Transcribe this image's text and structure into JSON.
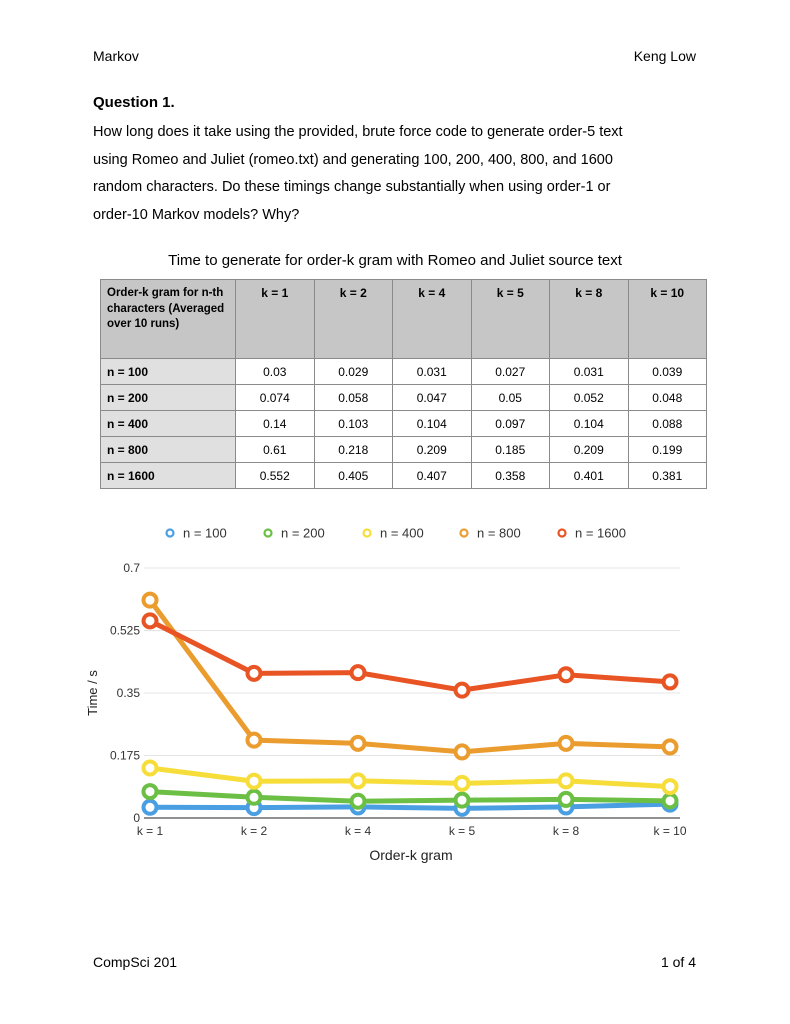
{
  "header": {
    "left": "Markov",
    "right": "Keng Low"
  },
  "question": {
    "title": "Question 1.",
    "lines": [
      "How long does it take using the provided, brute force code to generate order-5 text",
      "using Romeo and Juliet (romeo.txt) and generating 100, 200, 400, 800, and 1600",
      "random characters. Do these timings change substantially when using order-1 or",
      "order-10 Markov models? Why?"
    ]
  },
  "table": {
    "caption": "Time to generate for order-k gram with Romeo and Juliet source text",
    "corner": "Order-k gram for n-th characters (Averaged over 10 runs)",
    "columns": [
      "k = 1",
      "k = 2",
      "k = 4",
      "k = 5",
      "k = 8",
      "k = 10"
    ],
    "rows": [
      {
        "label": "n = 100",
        "values": [
          "0.03",
          "0.029",
          "0.031",
          "0.027",
          "0.031",
          "0.039"
        ]
      },
      {
        "label": "n = 200",
        "values": [
          "0.074",
          "0.058",
          "0.047",
          "0.05",
          "0.052",
          "0.048"
        ]
      },
      {
        "label": "n = 400",
        "values": [
          "0.14",
          "0.103",
          "0.104",
          "0.097",
          "0.104",
          "0.088"
        ]
      },
      {
        "label": "n = 800",
        "values": [
          "0.61",
          "0.218",
          "0.209",
          "0.185",
          "0.209",
          "0.199"
        ]
      },
      {
        "label": "n = 1600",
        "values": [
          "0.552",
          "0.405",
          "0.407",
          "0.358",
          "0.401",
          "0.381"
        ]
      }
    ]
  },
  "chart_data": {
    "type": "line",
    "categories": [
      "k = 1",
      "k = 2",
      "k = 4",
      "k = 5",
      "k = 8",
      "k = 10"
    ],
    "series": [
      {
        "name": "n = 100",
        "color": "#4a9fe3",
        "values": [
          0.03,
          0.029,
          0.031,
          0.027,
          0.031,
          0.039
        ]
      },
      {
        "name": "n = 200",
        "color": "#6cbf45",
        "values": [
          0.074,
          0.058,
          0.047,
          0.05,
          0.052,
          0.048
        ]
      },
      {
        "name": "n = 400",
        "color": "#f7dd3a",
        "values": [
          0.14,
          0.103,
          0.104,
          0.097,
          0.104,
          0.088
        ]
      },
      {
        "name": "n = 800",
        "color": "#eb9c2e",
        "values": [
          0.61,
          0.218,
          0.209,
          0.185,
          0.209,
          0.199
        ]
      },
      {
        "name": "n = 1600",
        "color": "#e85424",
        "values": [
          0.552,
          0.405,
          0.407,
          0.358,
          0.401,
          0.381
        ]
      }
    ],
    "yticks": [
      "0",
      "0.175",
      "0.35",
      "0.525",
      "0.7"
    ],
    "ylim": [
      0,
      0.7
    ],
    "xlabel": "Order-k gram",
    "ylabel": "Time / s",
    "legend": "top",
    "grid": true
  },
  "footer": {
    "left": "CompSci 201",
    "right": "1 of 4"
  }
}
